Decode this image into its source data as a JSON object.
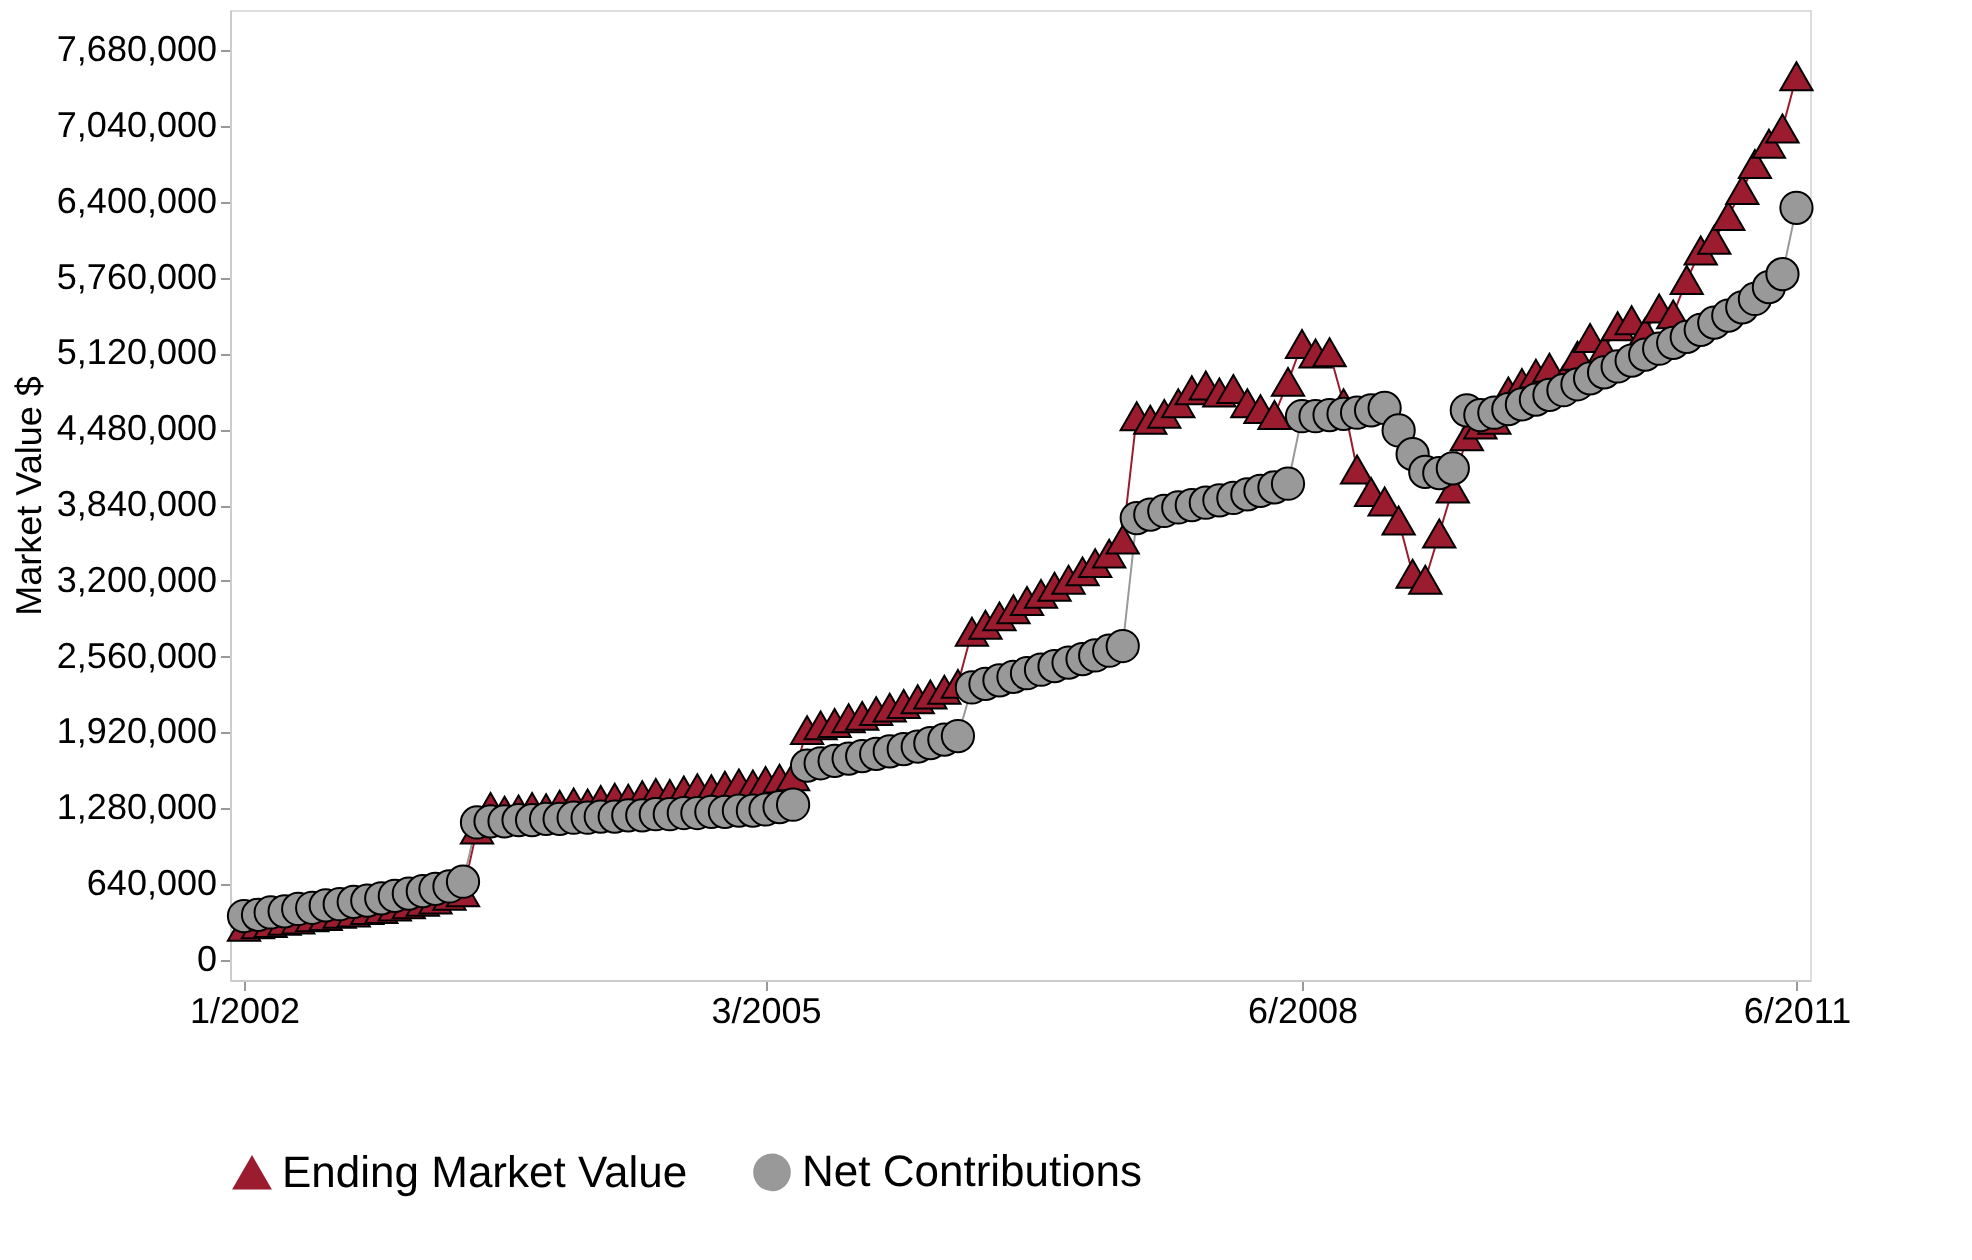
{
  "chart_data": {
    "type": "line",
    "ylabel": "Market Value $",
    "x": [
      "2002-01",
      "2002-02",
      "2002-03",
      "2002-04",
      "2002-05",
      "2002-06",
      "2002-07",
      "2002-08",
      "2002-09",
      "2002-10",
      "2002-11",
      "2002-12",
      "2003-01",
      "2003-02",
      "2003-03",
      "2003-04",
      "2003-05",
      "2003-06",
      "2003-07",
      "2003-08",
      "2003-09",
      "2003-10",
      "2003-11",
      "2003-12",
      "2004-01",
      "2004-02",
      "2004-03",
      "2004-04",
      "2004-05",
      "2004-06",
      "2004-07",
      "2004-08",
      "2004-09",
      "2004-10",
      "2004-11",
      "2004-12",
      "2005-01",
      "2005-02",
      "2005-03",
      "2005-04",
      "2005-05",
      "2005-06",
      "2005-07",
      "2005-08",
      "2005-09",
      "2005-10",
      "2005-11",
      "2005-12",
      "2006-01",
      "2006-02",
      "2006-03",
      "2006-04",
      "2006-05",
      "2006-06",
      "2006-07",
      "2006-08",
      "2006-09",
      "2006-10",
      "2006-11",
      "2006-12",
      "2007-01",
      "2007-02",
      "2007-03",
      "2007-04",
      "2007-05",
      "2007-06",
      "2007-07",
      "2007-08",
      "2007-09",
      "2007-10",
      "2007-11",
      "2007-12",
      "2008-01",
      "2008-02",
      "2008-03",
      "2008-04",
      "2008-05",
      "2008-06",
      "2008-07",
      "2008-08",
      "2008-09",
      "2008-10",
      "2008-11",
      "2008-12",
      "2009-01",
      "2009-02",
      "2009-03",
      "2009-04",
      "2009-05",
      "2009-06",
      "2009-07",
      "2009-08",
      "2009-09",
      "2009-10",
      "2009-11",
      "2009-12",
      "2010-01",
      "2010-02",
      "2010-03",
      "2010-04",
      "2010-05",
      "2010-06",
      "2010-07",
      "2010-08",
      "2010-09",
      "2010-10",
      "2010-11",
      "2010-12",
      "2011-01",
      "2011-02",
      "2011-03",
      "2011-04",
      "2011-05",
      "2011-06"
    ],
    "series": [
      {
        "name": "Ending Market Value",
        "color": "#9b1c2e",
        "marker": "triangle",
        "values": [
          280000,
          300000,
          310000,
          330000,
          340000,
          360000,
          370000,
          390000,
          400000,
          420000,
          430000,
          450000,
          470000,
          490000,
          510000,
          540000,
          570000,
          1100000,
          1290000,
          1260000,
          1270000,
          1290000,
          1280000,
          1310000,
          1330000,
          1320000,
          1350000,
          1370000,
          1360000,
          1390000,
          1410000,
          1400000,
          1430000,
          1450000,
          1440000,
          1470000,
          1490000,
          1480000,
          1510000,
          1530000,
          1550000,
          1940000,
          1980000,
          2000000,
          2040000,
          2060000,
          2100000,
          2130000,
          2160000,
          2200000,
          2240000,
          2280000,
          2330000,
          2770000,
          2830000,
          2900000,
          2960000,
          3030000,
          3090000,
          3150000,
          3210000,
          3280000,
          3350000,
          3430000,
          3550000,
          4590000,
          4560000,
          4610000,
          4700000,
          4810000,
          4850000,
          4790000,
          4820000,
          4700000,
          4650000,
          4600000,
          4880000,
          5200000,
          5120000,
          5130000,
          4700000,
          4140000,
          3950000,
          3870000,
          3710000,
          3260000,
          3210000,
          3600000,
          3980000,
          4420000,
          4520000,
          4560000,
          4800000,
          4870000,
          4950000,
          5000000,
          4900000,
          5100000,
          5250000,
          5150000,
          5350000,
          5400000,
          5300000,
          5500000,
          5450000,
          5740000,
          5990000,
          6080000,
          6280000,
          6500000,
          6720000,
          6890000,
          7020000,
          7460000
        ]
      },
      {
        "name": "Net Contributions",
        "color": "#999999",
        "marker": "circle",
        "values": [
          370000,
          380000,
          400000,
          410000,
          430000,
          440000,
          460000,
          470000,
          490000,
          500000,
          520000,
          540000,
          560000,
          580000,
          600000,
          620000,
          660000,
          1160000,
          1170000,
          1170000,
          1180000,
          1180000,
          1190000,
          1190000,
          1200000,
          1200000,
          1210000,
          1210000,
          1220000,
          1220000,
          1230000,
          1230000,
          1240000,
          1240000,
          1250000,
          1250000,
          1260000,
          1260000,
          1270000,
          1290000,
          1310000,
          1640000,
          1660000,
          1680000,
          1700000,
          1720000,
          1740000,
          1760000,
          1780000,
          1800000,
          1830000,
          1860000,
          1890000,
          2300000,
          2330000,
          2360000,
          2390000,
          2420000,
          2450000,
          2480000,
          2510000,
          2540000,
          2570000,
          2610000,
          2650000,
          3730000,
          3760000,
          3790000,
          3820000,
          3840000,
          3860000,
          3880000,
          3900000,
          3930000,
          3960000,
          3990000,
          4020000,
          4590000,
          4590000,
          4600000,
          4610000,
          4620000,
          4640000,
          4660000,
          4470000,
          4270000,
          4120000,
          4110000,
          4150000,
          4640000,
          4600000,
          4620000,
          4650000,
          4690000,
          4730000,
          4770000,
          4810000,
          4860000,
          4910000,
          4960000,
          5010000,
          5060000,
          5110000,
          5160000,
          5210000,
          5260000,
          5320000,
          5380000,
          5440000,
          5510000,
          5580000,
          5680000,
          5790000,
          6350000
        ]
      }
    ],
    "xlim": [
      "2001-12",
      "2011-07"
    ],
    "xticks": [
      {
        "value": "2002-01",
        "label": "1/2002"
      },
      {
        "value": "2005-03",
        "label": "3/2005"
      },
      {
        "value": "2008-06",
        "label": "6/2008"
      },
      {
        "value": "2011-06",
        "label": "6/2011"
      }
    ],
    "ylim": [
      -170000,
      8020000
    ],
    "yticks": [
      0,
      {
        "value": 640000,
        "label": "640,000"
      },
      {
        "value": 1280000,
        "label": "1,280,000"
      },
      {
        "value": 1920000,
        "label": "1,920,000"
      },
      {
        "value": 2560000,
        "label": "2,560,000"
      },
      {
        "value": 3200000,
        "label": "3,200,000"
      },
      {
        "value": 3840000,
        "label": "3,840,000"
      },
      {
        "value": 4480000,
        "label": "4,480,000"
      },
      {
        "value": 5120000,
        "label": "5,120,000"
      },
      {
        "value": 5760000,
        "label": "5,760,000"
      },
      {
        "value": 6400000,
        "label": "6,400,000"
      },
      {
        "value": 7040000,
        "label": "7,040,000"
      },
      {
        "value": 7680000,
        "label": "7,680,000"
      }
    ],
    "grid": false,
    "legend": "bottom",
    "line_style": "solid"
  }
}
